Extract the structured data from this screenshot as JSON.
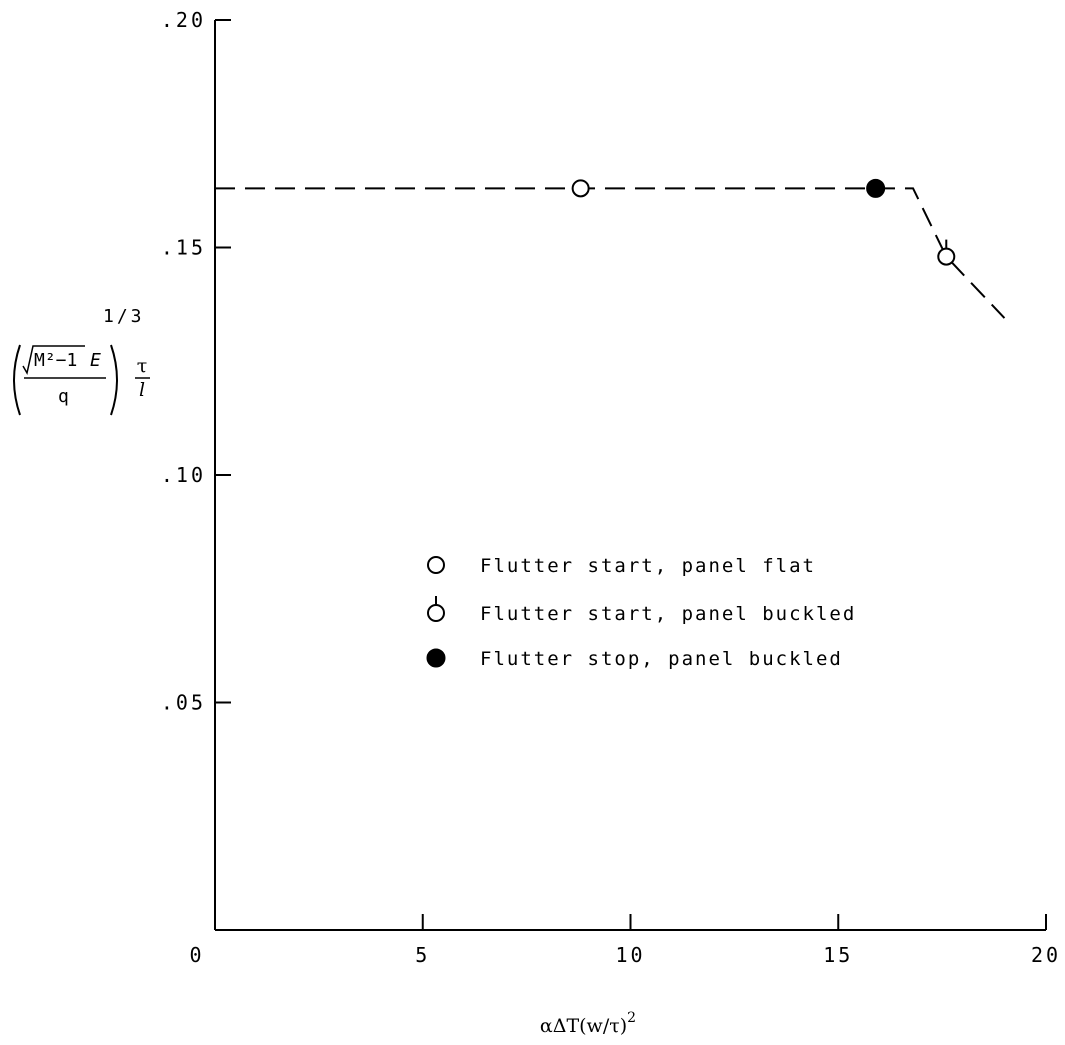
{
  "chart_data": {
    "type": "scatter",
    "xlabel": "αΔT(w/τ)",
    "xlabel_exp": "2",
    "ylabel": {
      "sqrt_term": "M²−1",
      "numerator_suffix": "E",
      "denominator": "q",
      "exponent": "1/3",
      "ratio_num": "τ",
      "ratio_den": "l"
    },
    "xlim": [
      0,
      20
    ],
    "ylim": [
      0,
      0.2
    ],
    "x_ticks": [
      {
        "value": 0,
        "label": "0"
      },
      {
        "value": 5,
        "label": "5"
      },
      {
        "value": 10,
        "label": "10"
      },
      {
        "value": 15,
        "label": "15"
      },
      {
        "value": 20,
        "label": "20"
      }
    ],
    "y_ticks": [
      {
        "value": 0.05,
        "label": ".05"
      },
      {
        "value": 0.1,
        "label": ".10"
      },
      {
        "value": 0.15,
        "label": ".15"
      },
      {
        "value": 0.2,
        "label": ".20"
      }
    ],
    "grid": false,
    "series": [
      {
        "name": "Flutter start, panel flat",
        "marker": "open-circle",
        "points": [
          {
            "x": 8.8,
            "y": 0.163
          }
        ]
      },
      {
        "name": "Flutter start, panel buckled",
        "marker": "open-circle-flag",
        "points": [
          {
            "x": 17.6,
            "y": 0.148
          }
        ]
      },
      {
        "name": "Flutter stop, panel buckled",
        "marker": "filled-circle",
        "points": [
          {
            "x": 15.9,
            "y": 0.163
          }
        ]
      }
    ],
    "fit_line": {
      "style": "dashed",
      "points": [
        {
          "x": 0,
          "y": 0.163
        },
        {
          "x": 16.8,
          "y": 0.163
        },
        {
          "x": 17.6,
          "y": 0.148
        },
        {
          "x": 19.0,
          "y": 0.1345
        }
      ]
    },
    "legend": {
      "position": "center"
    }
  }
}
